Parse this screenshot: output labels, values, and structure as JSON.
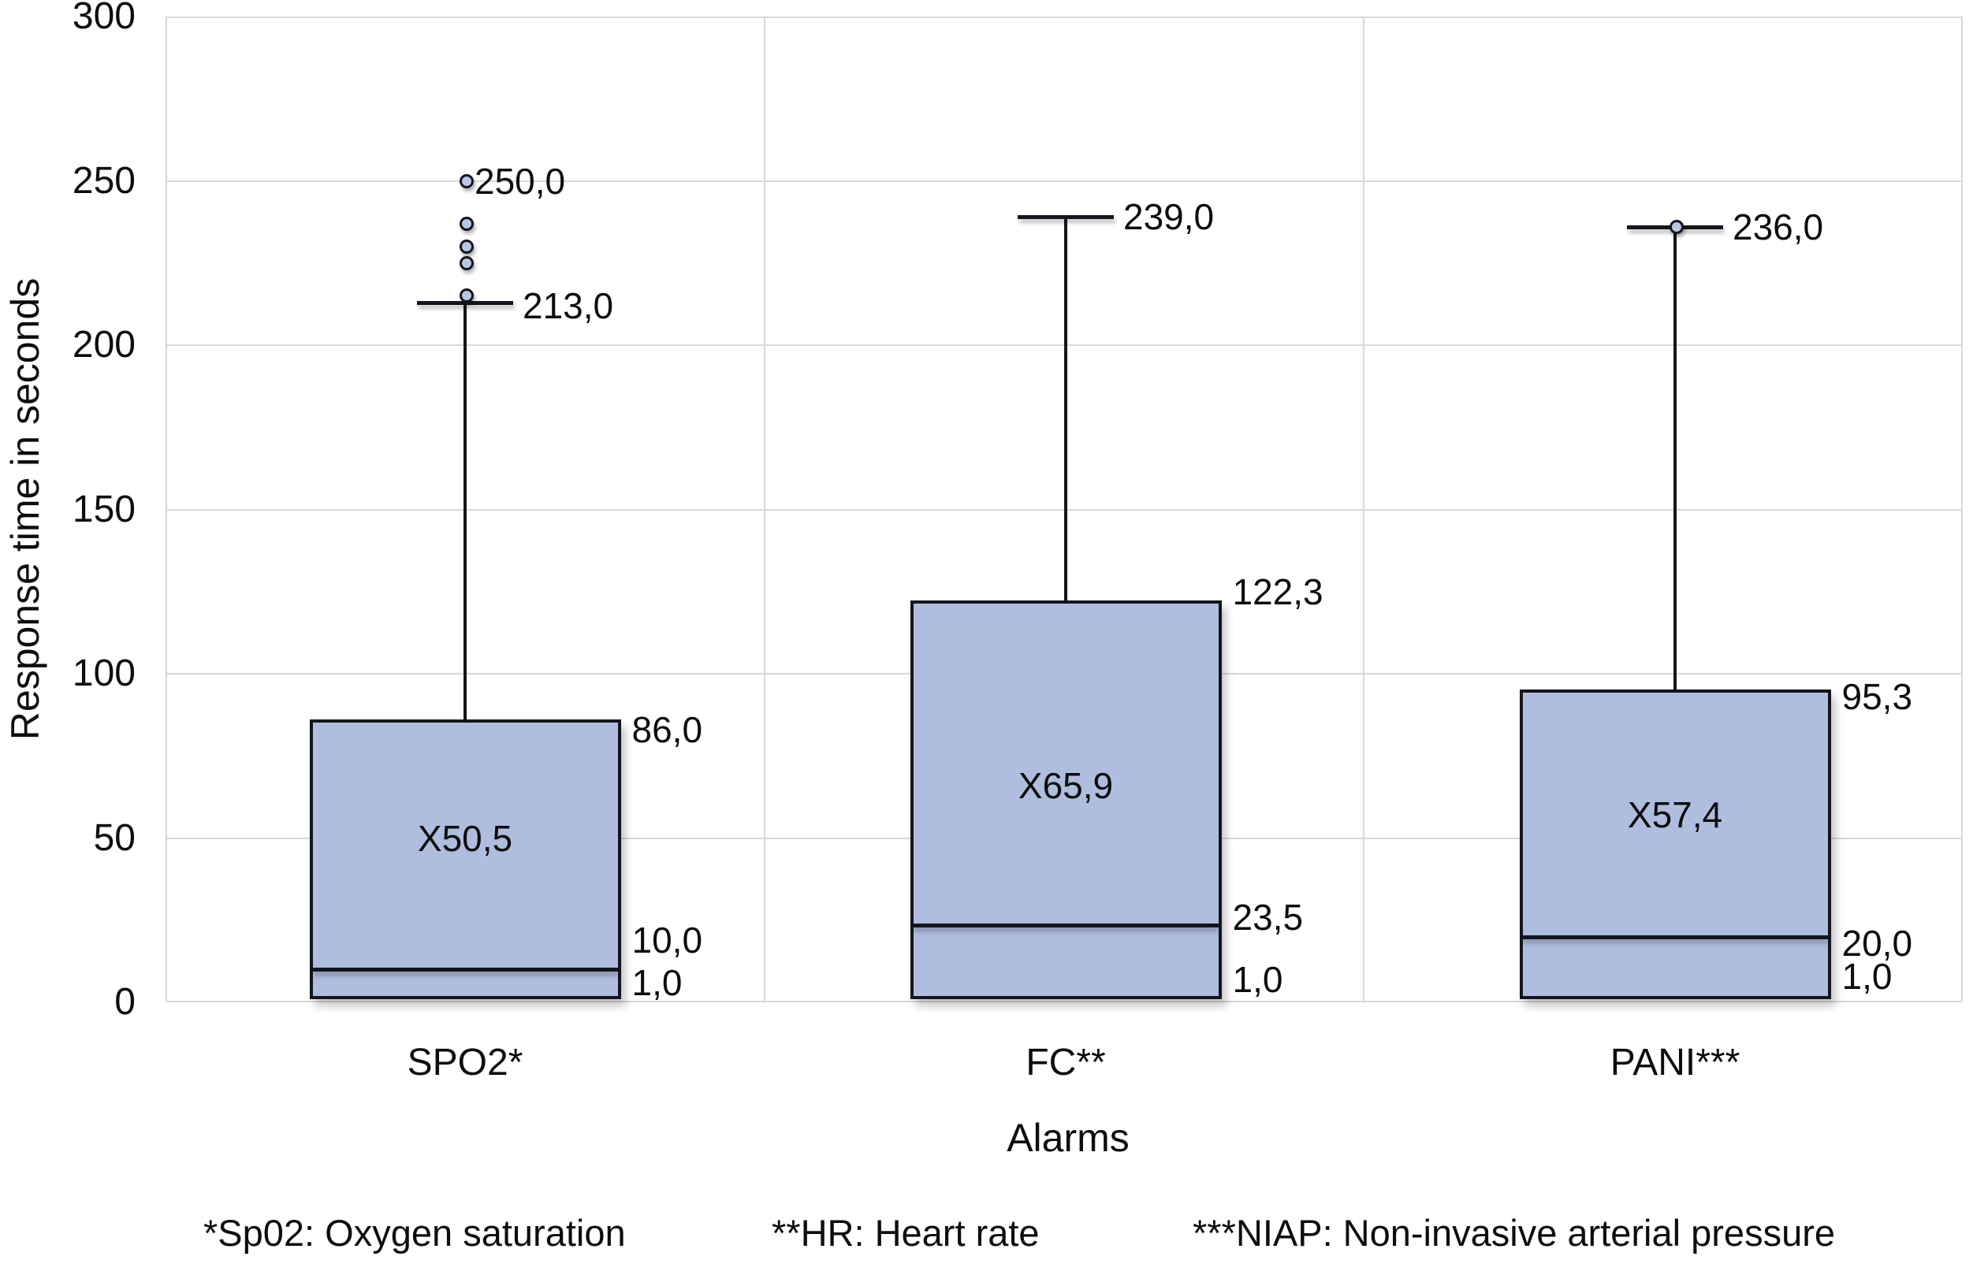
{
  "chart_data": {
    "type": "box",
    "title": "",
    "ylabel": "Response time in seconds",
    "xlabel": "Alarms",
    "ylim": [
      0,
      300
    ],
    "yticks": [
      300,
      250,
      200,
      150,
      100,
      50,
      0
    ],
    "grid": "horizontal-major, panel separators vertical at thirds",
    "legend": "none",
    "decimal_separator": ",",
    "categories": [
      "SPO2*",
      "FC**",
      "PANI***"
    ],
    "series": [
      {
        "category": "SPO2*",
        "q1": 1.0,
        "median": 10.0,
        "q3": 86.0,
        "whisker_low": 1.0,
        "whisker_high": 213.0,
        "mean": 50.5,
        "outliers": [
          250,
          237,
          230,
          225,
          215
        ],
        "labels": [
          {
            "text": "250,0",
            "at": 250,
            "anchor": "outlier"
          },
          {
            "text": "213,0",
            "at": 212,
            "anchor": "whisker"
          },
          {
            "text": "86,0",
            "at": 83,
            "anchor": "box"
          },
          {
            "text": "10,0",
            "at": 19,
            "anchor": "box"
          },
          {
            "text": "1,0",
            "at": 6,
            "anchor": "box"
          }
        ],
        "mean_label": {
          "text": "X50,5",
          "at": 50
        }
      },
      {
        "category": "FC**",
        "q1": 1.0,
        "median": 23.5,
        "q3": 122.3,
        "whisker_low": 1.0,
        "whisker_high": 239.0,
        "mean": 65.9,
        "outliers": [],
        "labels": [
          {
            "text": "239,0",
            "at": 239,
            "anchor": "whisker"
          },
          {
            "text": "122,3",
            "at": 125,
            "anchor": "box"
          },
          {
            "text": "23,5",
            "at": 26,
            "anchor": "box"
          },
          {
            "text": "1,0",
            "at": 7,
            "anchor": "box"
          }
        ],
        "mean_label": {
          "text": "X65,9",
          "at": 66
        }
      },
      {
        "category": "PANI***",
        "q1": 1.0,
        "median": 20.0,
        "q3": 95.3,
        "whisker_low": 1.0,
        "whisker_high": 236.0,
        "mean": 57.4,
        "outliers": [
          236
        ],
        "labels": [
          {
            "text": "236,0",
            "at": 236,
            "anchor": "whisker"
          },
          {
            "text": "95,3",
            "at": 93,
            "anchor": "box"
          },
          {
            "text": "20,0",
            "at": 18,
            "anchor": "box"
          },
          {
            "text": "1,0",
            "at": 8,
            "anchor": "box"
          }
        ],
        "mean_label": {
          "text": "X57,4",
          "at": 57
        }
      }
    ],
    "footnotes": [
      "*Sp02: Oxygen saturation",
      "**HR: Heart rate",
      "***NIAP: Non-invasive arterial pressure"
    ],
    "colors": {
      "box_fill": "#afbddf",
      "box_border": "#15151e",
      "grid": "#d8d8d8",
      "text": "#0d0d0d",
      "outlier_fill": "#b9c7e6",
      "background": "#ffffff"
    }
  }
}
